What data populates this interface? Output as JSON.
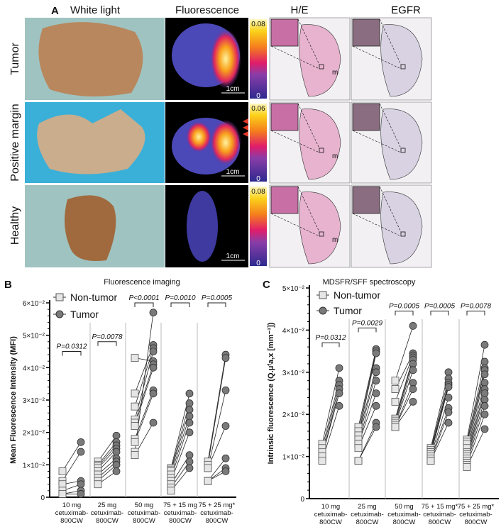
{
  "panel_a": {
    "label": "A",
    "columns": [
      "White light",
      "Fluorescence",
      "H/E",
      "EGFR"
    ],
    "rows": [
      "Tumor",
      "Positive margin",
      "Healthy"
    ],
    "colorbar_max": [
      "0.08",
      "0.06",
      "0.08"
    ],
    "colorbar_min": "0",
    "scale_bar": "1cm",
    "inset_marker": "m"
  },
  "chart_data": [
    {
      "panel_label": "B",
      "type": "scatter",
      "title": "Fluorescence imaging",
      "ylabel": "Mean Fluorescence Intensity (MFI)",
      "ylim": [
        0,
        0.06
      ],
      "yticks": [
        "0",
        "1×10⁻²",
        "2×10⁻²",
        "3×10⁻²",
        "4×10⁻²",
        "5×10⁻²",
        "6×10⁻²"
      ],
      "legend": [
        "Non-tumor",
        "Tumor"
      ],
      "legend_position": "top-left",
      "categories": [
        [
          "10 mg",
          "cetuximab-",
          "800CW"
        ],
        [
          "25 mg",
          "cetuximab-",
          "800CW"
        ],
        [
          "50 mg",
          "cetuximab-",
          "800CW"
        ],
        [
          "75 + 15 mg",
          "cetuximab-",
          "800CW"
        ],
        [
          "75 + 25 mg*",
          "cetuximab-",
          "800CW"
        ]
      ],
      "p_values": [
        "P=0.0312",
        "P=0.0078",
        "P<0.0001",
        "P=0.0010",
        "P=0.0005"
      ],
      "groups": [
        {
          "non_tumor": [
            0.008,
            0.005,
            0.004,
            0.002,
            0.001,
            0.001
          ],
          "tumor": [
            0.017,
            0.014,
            0.005,
            0.004,
            0.002,
            0.001
          ]
        },
        {
          "non_tumor": [
            0.011,
            0.01,
            0.0095,
            0.009,
            0.008,
            0.007,
            0.006,
            0.005,
            0.004
          ],
          "tumor": [
            0.019,
            0.017,
            0.016,
            0.015,
            0.014,
            0.012,
            0.011,
            0.01,
            0.008
          ]
        },
        {
          "non_tumor": [
            0.043,
            0.032,
            0.028,
            0.024,
            0.023,
            0.022,
            0.018,
            0.017,
            0.014,
            0.013
          ],
          "tumor": [
            0.042,
            0.047,
            0.046,
            0.045,
            0.041,
            0.04,
            0.033,
            0.032,
            0.057,
            0.023
          ]
        },
        {
          "non_tumor": [
            0.009,
            0.0085,
            0.008,
            0.007,
            0.006,
            0.005,
            0.004,
            0.003,
            0.002
          ],
          "tumor": [
            0.032,
            0.029,
            0.027,
            0.025,
            0.023,
            0.02,
            0.013,
            0.011,
            0.009
          ]
        },
        {
          "non_tumor": [
            0.011,
            0.01,
            0.009,
            0.009,
            0.005,
            0.005,
            0.005
          ],
          "tumor": [
            0.044,
            0.043,
            0.033,
            0.022,
            0.012,
            0.009,
            0.008
          ]
        }
      ],
      "p_bracket_y": [
        0.045,
        0.048,
        0.06,
        0.06,
        0.06
      ]
    },
    {
      "panel_label": "C",
      "type": "scatter",
      "title": "MDSFR/SFF spectroscopy",
      "ylabel": "Intrinsic fluorescence (Q.μᶠa,x [mm⁻¹])",
      "ylim": [
        0,
        0.05
      ],
      "yticks": [
        "0",
        "1×10⁻²",
        "2×10⁻²",
        "3×10⁻²",
        "4×10⁻²",
        "5×10⁻²"
      ],
      "legend": [
        "Non-tumor",
        "Tumor"
      ],
      "legend_position": "top-left",
      "categories": [
        [
          "10 mg",
          "cetuximab-",
          "800CW"
        ],
        [
          "25 mg",
          "cetuximab-",
          "800CW"
        ],
        [
          "50 mg",
          "cetuximab-",
          "800CW"
        ],
        [
          "75 + 15 mg*",
          "cetuximab-",
          "800CW"
        ],
        [
          "75 + 25 mg*",
          "cetuximab-",
          "800CW"
        ]
      ],
      "p_values": [
        "P=0.0312",
        "P=0.0029",
        "P=0.0005",
        "P=0.0005",
        "P=0.0078"
      ],
      "groups": [
        {
          "non_tumor": [
            0.013,
            0.012,
            0.011,
            0.01,
            0.01,
            0.009
          ],
          "tumor": [
            0.031,
            0.028,
            0.027,
            0.026,
            0.025,
            0.022
          ]
        },
        {
          "non_tumor": [
            0.017,
            0.016,
            0.015,
            0.015,
            0.014,
            0.013,
            0.013,
            0.012,
            0.009,
            0.009
          ],
          "tumor": [
            0.0355,
            0.035,
            0.0345,
            0.031,
            0.03,
            0.028,
            0.025,
            0.022,
            0.018,
            0.017
          ]
        },
        {
          "non_tumor": [
            0.028,
            0.026,
            0.023,
            0.019,
            0.0185,
            0.018,
            0.0175,
            0.017,
            0.017,
            0.017
          ],
          "tumor": [
            0.041,
            0.0345,
            0.034,
            0.0335,
            0.033,
            0.032,
            0.0305,
            0.0275,
            0.026,
            0.023
          ]
        },
        {
          "non_tumor": [
            0.012,
            0.0115,
            0.011,
            0.011,
            0.0105,
            0.01,
            0.0095,
            0.009,
            0.009
          ],
          "tumor": [
            0.03,
            0.0285,
            0.0275,
            0.027,
            0.0265,
            0.024,
            0.0215,
            0.0205,
            0.018
          ]
        },
        {
          "non_tumor": [
            0.014,
            0.0135,
            0.013,
            0.012,
            0.011,
            0.0105,
            0.01,
            0.0095,
            0.009,
            0.0085,
            0.008,
            0.0075
          ],
          "tumor": [
            0.0365,
            0.0325,
            0.031,
            0.0305,
            0.0295,
            0.0275,
            0.026,
            0.025,
            0.0235,
            0.022,
            0.02,
            0.0165
          ]
        }
      ],
      "p_bracket_y": [
        0.037,
        0.0405,
        0.0445,
        0.0445,
        0.0445
      ]
    }
  ],
  "colors": {
    "non_tumor_fill": "#e6e6e6",
    "tumor_fill": "#7a7a7a",
    "divider": "#bbbbbb",
    "photo_bg": "#9fc3c0",
    "margin_photo_bg": "#3ab0d8",
    "fluor_bg": "#000000",
    "he_tissue": "#e7b3cf",
    "egfr_tissue": "#d8d2e2"
  }
}
